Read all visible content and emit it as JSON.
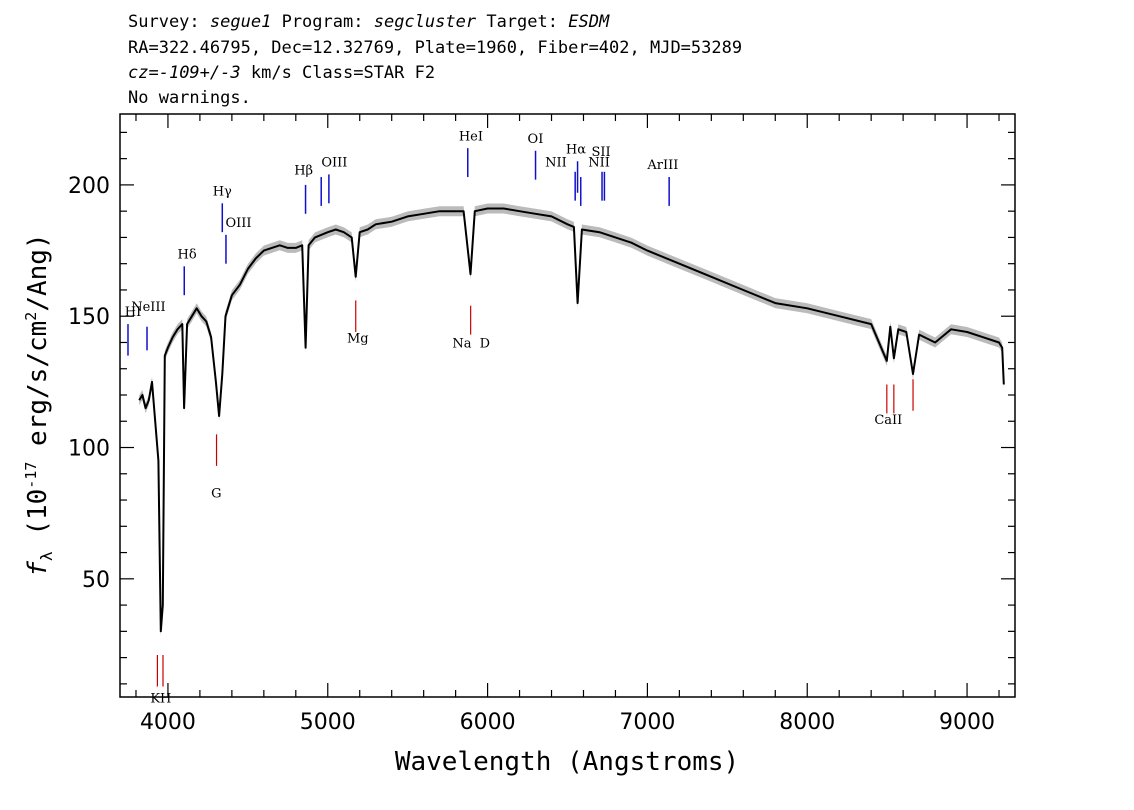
{
  "header": {
    "survey_label": "Survey:",
    "survey": "segue1",
    "program_label": "Program:",
    "program": "segcluster",
    "target_label": "Target:",
    "target": "ESDM",
    "line2": "RA=322.46795, Dec=12.32769, Plate=1960, Fiber=402, MJD=53289",
    "cz_label": "cz=",
    "cz": "-109+/-3",
    "cz_rest": "km/s Class=STAR F2",
    "line4": "No warnings."
  },
  "chart_data": {
    "type": "line",
    "xlabel": "Wavelength (Angstroms)",
    "ylabel": "f_λ (10^-17 erg/s/cm^2/Ang)",
    "xlim": [
      3700,
      9300
    ],
    "ylim": [
      5,
      227
    ],
    "x_ticks": [
      4000,
      5000,
      6000,
      7000,
      8000,
      9000
    ],
    "y_ticks": [
      50,
      100,
      150,
      200
    ],
    "grid": false,
    "series": [
      {
        "color": "#000000",
        "error_color": "#bbbbbb",
        "x": [
          3820,
          3840,
          3860,
          3880,
          3900,
          3920,
          3940,
          3955,
          3968,
          3980,
          4000,
          4030,
          4060,
          4090,
          4101,
          4120,
          4150,
          4180,
          4210,
          4240,
          4270,
          4300,
          4320,
          4340,
          4360,
          4400,
          4450,
          4500,
          4550,
          4600,
          4650,
          4700,
          4750,
          4800,
          4840,
          4861,
          4880,
          4920,
          5000,
          5050,
          5100,
          5150,
          5175,
          5200,
          5250,
          5300,
          5400,
          5500,
          5600,
          5700,
          5800,
          5850,
          5893,
          5920,
          6000,
          6100,
          6200,
          6300,
          6400,
          6500,
          6540,
          6563,
          6590,
          6700,
          6800,
          6900,
          7000,
          7200,
          7400,
          7600,
          7800,
          8000,
          8200,
          8400,
          8498,
          8520,
          8542,
          8570,
          8620,
          8662,
          8700,
          8800,
          8900,
          9000,
          9100,
          9200,
          9220,
          9230
        ],
        "y": [
          118,
          120,
          115,
          118,
          125,
          110,
          95,
          30,
          40,
          135,
          138,
          142,
          145,
          147,
          115,
          147,
          150,
          153,
          150,
          148,
          142,
          125,
          112,
          128,
          150,
          158,
          162,
          168,
          172,
          175,
          176,
          177,
          176,
          176,
          177,
          138,
          177,
          180,
          182,
          183,
          182,
          180,
          165,
          182,
          183,
          185,
          186,
          188,
          189,
          190,
          190,
          190,
          166,
          190,
          191,
          191,
          190,
          189,
          188,
          185,
          184,
          155,
          183,
          182,
          180,
          178,
          175,
          170,
          165,
          160,
          155,
          153,
          150,
          147,
          133,
          146,
          134,
          145,
          144,
          128,
          143,
          140,
          145,
          144,
          142,
          140,
          138,
          124
        ]
      }
    ],
    "emission_lines": [
      {
        "label": "HI",
        "x": 3750,
        "y_top": 147,
        "y_bot": 135
      },
      {
        "label": "NeIII",
        "x": 3869,
        "y_top": 146,
        "y_bot": 137
      },
      {
        "label": "Hδ",
        "x": 4102,
        "y_top": 169,
        "y_bot": 158
      },
      {
        "label": "Hγ",
        "x": 4340,
        "y_top": 193,
        "y_bot": 182
      },
      {
        "label": "OIII",
        "x": 4363,
        "y_top": 181,
        "y_bot": 170
      },
      {
        "label": "Hβ",
        "x": 4861,
        "y_top": 200,
        "y_bot": 189
      },
      {
        "label": "OIII",
        "x": 4959,
        "y_top": 203,
        "y_bot": 192
      },
      {
        "label": "OIII",
        "x": 5007,
        "y_top": 204,
        "y_bot": 193
      },
      {
        "label": "HeI",
        "x": 5876,
        "y_top": 214,
        "y_bot": 203
      },
      {
        "label": "OI",
        "x": 6300,
        "y_top": 213,
        "y_bot": 202
      },
      {
        "label": "NII",
        "x": 6548,
        "y_top": 205,
        "y_bot": 194
      },
      {
        "label": "Hα",
        "x": 6563,
        "y_top": 209,
        "y_bot": 197
      },
      {
        "label": "NII",
        "x": 6583,
        "y_top": 203,
        "y_bot": 192
      },
      {
        "label": "SII",
        "x": 6716,
        "y_top": 205,
        "y_bot": 194
      },
      {
        "label": "SII",
        "x": 6731,
        "y_top": 205,
        "y_bot": 194
      },
      {
        "label": "ArIII",
        "x": 7136,
        "y_top": 203,
        "y_bot": 192
      }
    ],
    "emission_label_positions": [
      {
        "text": "HI",
        "x": 3730,
        "y": 150
      },
      {
        "text": "NeIII",
        "x": 3770,
        "y": 152
      },
      {
        "text": "Hδ",
        "x": 4060,
        "y": 172
      },
      {
        "text": "Hγ",
        "x": 4280,
        "y": 196
      },
      {
        "text": "OIII",
        "x": 4360,
        "y": 184
      },
      {
        "text": "Hβ",
        "x": 4790,
        "y": 204
      },
      {
        "text": "OIII",
        "x": 4960,
        "y": 207
      },
      {
        "text": "HeI",
        "x": 5820,
        "y": 217
      },
      {
        "text": "OI",
        "x": 6250,
        "y": 216
      },
      {
        "text": "NII",
        "x": 6360,
        "y": 207
      },
      {
        "text": "Hα",
        "x": 6490,
        "y": 212
      },
      {
        "text": "SII",
        "x": 6650,
        "y": 211
      },
      {
        "text": "NII",
        "x": 6630,
        "y": 207
      },
      {
        "text": "ArIII",
        "x": 7000,
        "y": 206
      }
    ],
    "absorption_lines": [
      {
        "label": "K",
        "x": 3934,
        "y_top": 21,
        "y_bot": 9
      },
      {
        "label": "H",
        "x": 3969,
        "y_top": 21,
        "y_bot": 9
      },
      {
        "label": "G",
        "x": 4304,
        "y_top": 105,
        "y_bot": 93
      },
      {
        "label": "Mg",
        "x": 5175,
        "y_top": 156,
        "y_bot": 144
      },
      {
        "label": "Na",
        "x": 5894,
        "y_top": 154,
        "y_bot": 143
      },
      {
        "label": "CaII",
        "x": 8498,
        "y_top": 124,
        "y_bot": 113
      },
      {
        "label": "CaII",
        "x": 8542,
        "y_top": 124,
        "y_bot": 113
      },
      {
        "label": "CaII",
        "x": 8662,
        "y_top": 126,
        "y_bot": 114
      }
    ],
    "absorption_label_positions": [
      {
        "text": "K",
        "x": 3890,
        "y": 3
      },
      {
        "text": "H",
        "x": 3950,
        "y": 3
      },
      {
        "text": "G",
        "x": 4270,
        "y": 81
      },
      {
        "text": "Mg",
        "x": 5120,
        "y": 140
      },
      {
        "text": "Na",
        "x": 5780,
        "y": 138
      },
      {
        "text": "D",
        "x": 5950,
        "y": 138
      },
      {
        "text": "CaII",
        "x": 8420,
        "y": 109
      }
    ],
    "emission_color": "#1010cc",
    "absorption_color": "#cc0000"
  }
}
